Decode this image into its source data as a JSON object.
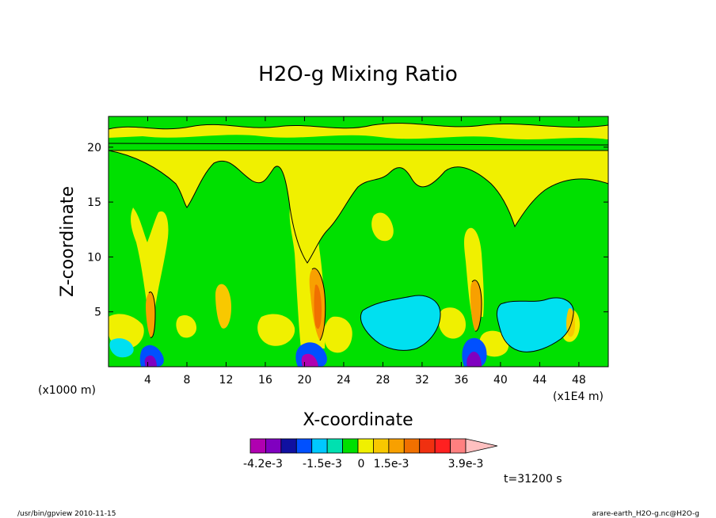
{
  "chart_data": {
    "type": "heatmap",
    "title": "H2O-g Mixing Ratio",
    "xlabel": "X-coordinate",
    "ylabel": "Z-coordinate",
    "x_unit_label": "(x1000 m)",
    "x_scale_label": "(x1E4 m)",
    "xlim": [
      0,
      51
    ],
    "ylim": [
      0,
      22.8
    ],
    "x_ticks": [
      4,
      8,
      12,
      16,
      20,
      24,
      28,
      32,
      36,
      40,
      44,
      48
    ],
    "y_ticks": [
      5,
      10,
      15,
      20
    ],
    "colorbar": {
      "colors": [
        "#b000b0",
        "#8000c0",
        "#1010a0",
        "#0050ff",
        "#00c8ff",
        "#00e0b0",
        "#00e000",
        "#f0f000",
        "#f8c800",
        "#f8a000",
        "#f07000",
        "#f03010",
        "#ff2020",
        "#ff8080",
        "#ffc0c0"
      ],
      "labels": [
        "-4.2e-3",
        "-1.5e-3",
        "0",
        "1.5e-3",
        "3.9e-3"
      ]
    },
    "regions": [
      {
        "name": "background",
        "value": "green"
      },
      {
        "name": "upper-layer",
        "z_range": [
          19,
          22.8
        ],
        "value": "yellow/green bands"
      },
      {
        "name": "plume",
        "x": 4.5,
        "z_top": 14.5,
        "value": "yellow with orange core"
      },
      {
        "name": "plume",
        "x": 21.5,
        "z_top": 17,
        "value": "yellow with orange core"
      },
      {
        "name": "plume",
        "x": 37.8,
        "z_top": 14,
        "value": "yellow with orange core"
      },
      {
        "name": "cyan-patch",
        "x": 30,
        "z_range": [
          2,
          6
        ],
        "value": "negative anomaly"
      },
      {
        "name": "cyan-patch",
        "x": 44,
        "z_range": [
          1,
          6
        ],
        "value": "negative anomaly"
      }
    ],
    "time_label": "t=31200 s"
  },
  "footer": {
    "left": "/usr/bin/gpview   2010-11-15",
    "right": "arare-earth_H2O-g.nc@H2O-g"
  }
}
